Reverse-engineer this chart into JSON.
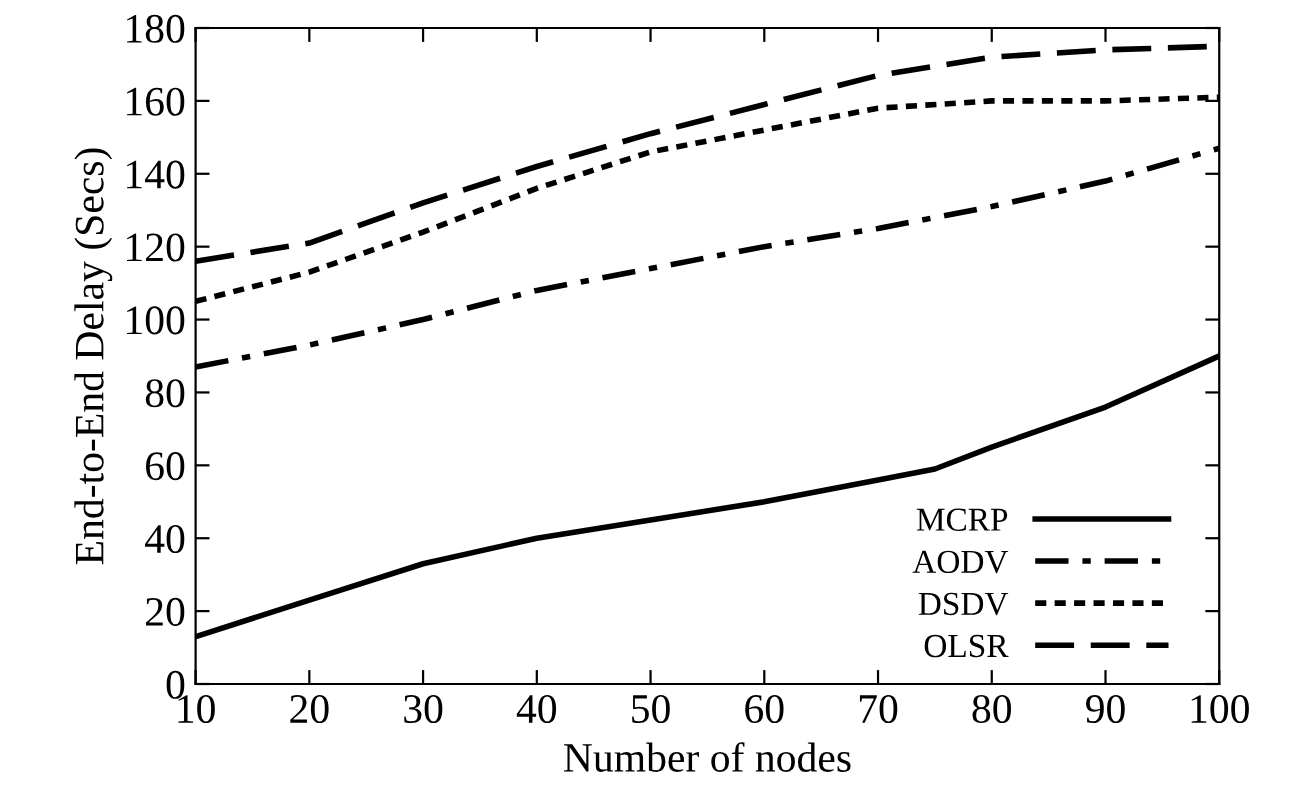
{
  "chart_data": {
    "type": "line",
    "xlabel": "Number of nodes",
    "ylabel": "End-to-End Delay (Secs)",
    "xlim": [
      10,
      100
    ],
    "xticks": [
      10,
      20,
      30,
      40,
      50,
      60,
      70,
      80,
      90,
      100
    ],
    "ylim": [
      0,
      180
    ],
    "yticks": [
      0,
      20,
      40,
      60,
      80,
      100,
      120,
      140,
      160,
      180
    ],
    "grid": false,
    "legend": "bottom right",
    "marker": "none",
    "series": [
      {
        "name": "MCRP",
        "color": "#000000",
        "line_style": "solid",
        "x": [
          10,
          20,
          30,
          40,
          50,
          60,
          70,
          75,
          80,
          90,
          100
        ],
        "values": [
          13,
          23,
          33,
          40,
          45,
          50,
          56,
          59,
          65,
          76,
          90
        ]
      },
      {
        "name": "AODV",
        "color": "#000000",
        "line_style": "dashdot",
        "x": [
          10,
          20,
          30,
          40,
          50,
          60,
          70,
          80,
          90,
          100
        ],
        "values": [
          87,
          93,
          100,
          108,
          114,
          120,
          125,
          131,
          138,
          147
        ]
      },
      {
        "name": "DSDV",
        "color": "#000000",
        "line_style": "dotted",
        "x": [
          10,
          20,
          30,
          40,
          50,
          60,
          70,
          80,
          90,
          100
        ],
        "values": [
          105,
          113,
          124,
          136,
          146,
          152,
          158,
          160,
          160,
          161
        ]
      },
      {
        "name": "OLSR",
        "color": "#000000",
        "line_style": "dashed",
        "x": [
          10,
          20,
          30,
          40,
          50,
          60,
          70,
          80,
          90,
          100
        ],
        "values": [
          116,
          121,
          132,
          142,
          151,
          159,
          167,
          172,
          174,
          175
        ]
      }
    ]
  }
}
